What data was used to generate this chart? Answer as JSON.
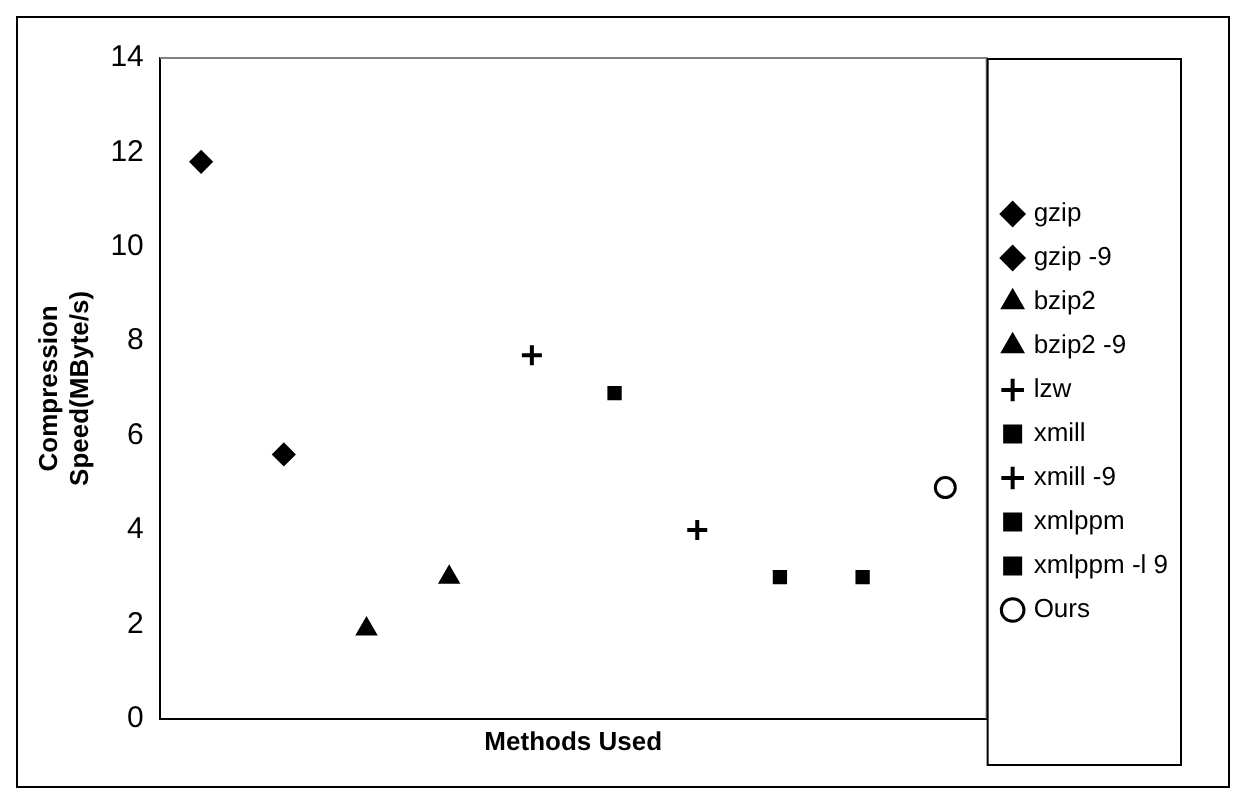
{
  "chart_data": {
    "type": "scatter",
    "xlabel": "Methods Used",
    "ylabel": "Compression Speed(MByte/s)",
    "categories": [
      null,
      null,
      null,
      null,
      null,
      null,
      null,
      null,
      null,
      null
    ],
    "ylim": [
      0,
      14
    ],
    "yticks": [
      0,
      2,
      4,
      6,
      8,
      10,
      12,
      14
    ],
    "grid": false,
    "legend": "right",
    "series": [
      {
        "name": "gzip",
        "color": "#000000",
        "marker": "diamond",
        "values": [
          11.8,
          null,
          null,
          null,
          null,
          null,
          null,
          null,
          null,
          null
        ]
      },
      {
        "name": "gzip -9",
        "color": "#000000",
        "marker": "diamond",
        "values": [
          null,
          5.6,
          null,
          null,
          null,
          null,
          null,
          null,
          null,
          null
        ]
      },
      {
        "name": "bzip2",
        "color": "#000000",
        "marker": "triangle",
        "values": [
          null,
          null,
          1.9,
          null,
          null,
          null,
          null,
          null,
          null,
          null
        ]
      },
      {
        "name": "bzip2 -9",
        "color": "#000000",
        "marker": "triangle",
        "values": [
          null,
          null,
          null,
          3.0,
          null,
          null,
          null,
          null,
          null,
          null
        ]
      },
      {
        "name": "lzw",
        "color": "#000000",
        "marker": "cross",
        "values": [
          null,
          null,
          null,
          null,
          7.7,
          null,
          null,
          null,
          null,
          null
        ]
      },
      {
        "name": "xmill",
        "color": "#000000",
        "marker": "square",
        "values": [
          null,
          null,
          null,
          null,
          null,
          6.9,
          null,
          null,
          null,
          null
        ]
      },
      {
        "name": "xmill -9",
        "color": "#000000",
        "marker": "cross",
        "values": [
          null,
          null,
          null,
          null,
          null,
          null,
          4.0,
          null,
          null,
          null
        ]
      },
      {
        "name": "xmlppm",
        "color": "#000000",
        "marker": "square",
        "values": [
          null,
          null,
          null,
          null,
          null,
          null,
          null,
          3.0,
          null,
          null
        ]
      },
      {
        "name": "xmlppm -l 9",
        "color": "#000000",
        "marker": "square",
        "values": [
          null,
          null,
          null,
          null,
          null,
          null,
          null,
          null,
          3.0,
          null
        ]
      },
      {
        "name": "Ours",
        "color": "#000000",
        "marker": "circle",
        "values": [
          null,
          null,
          null,
          null,
          null,
          null,
          null,
          null,
          null,
          4.9
        ]
      }
    ]
  }
}
